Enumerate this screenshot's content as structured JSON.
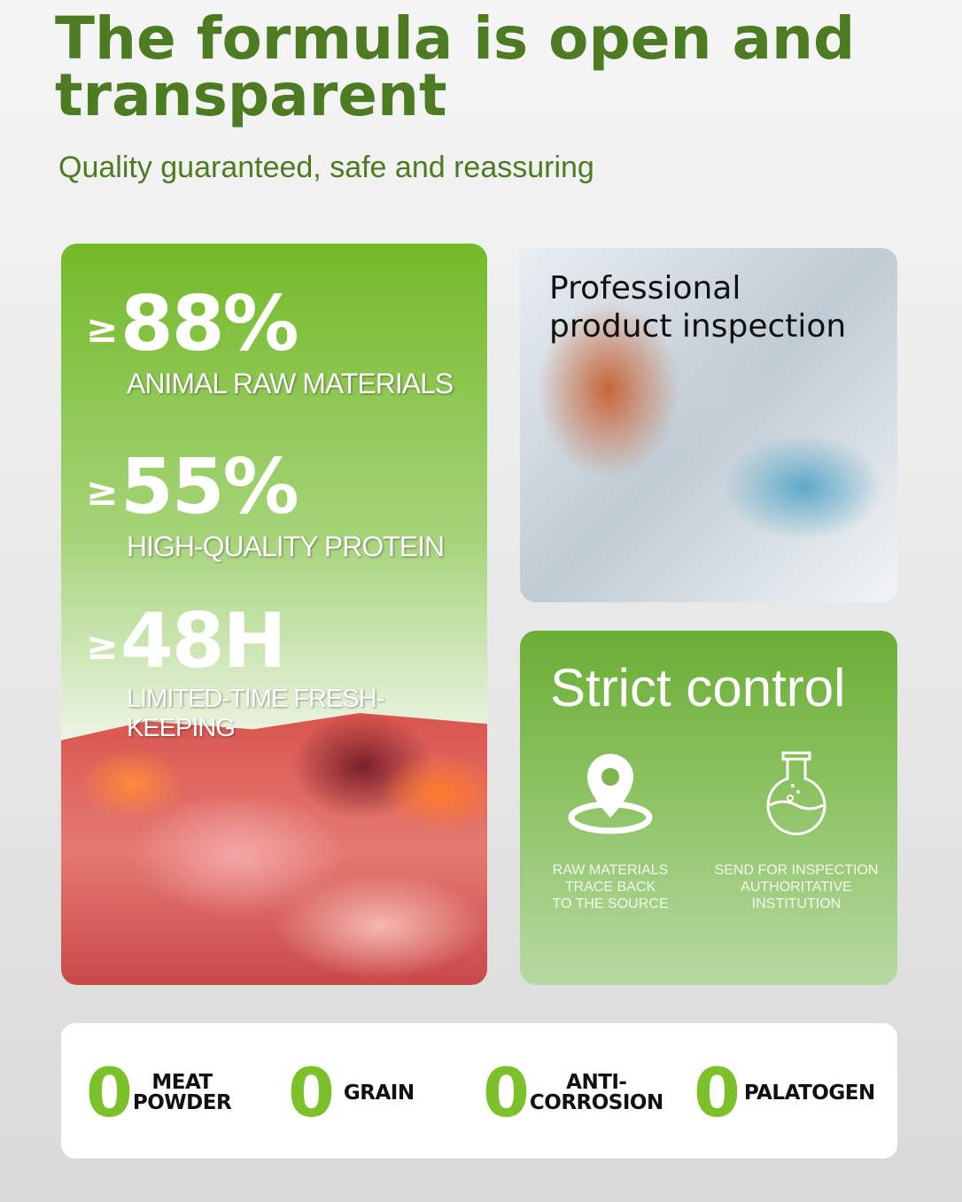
{
  "header": {
    "title_line1": "The formula is open and",
    "title_line2": "transparent",
    "subtitle": "Quality guaranteed, safe and reassuring"
  },
  "stats": [
    {
      "symbol": "≥",
      "value": "88%",
      "label": "ANIMAL RAW MATERIALS"
    },
    {
      "symbol": "≥",
      "value": "55%",
      "label": "HIGH-QUALITY PROTEIN"
    },
    {
      "symbol": "≥",
      "value": "48H",
      "label": "LIMITED-TIME FRESH-KEEPING"
    }
  ],
  "inspection": {
    "line1": "Professional",
    "line2": "product inspection"
  },
  "strict": {
    "title": "Strict control",
    "features": [
      {
        "icon": "location-pin-icon",
        "lines": [
          "RAW MATERIALS",
          "TRACE BACK",
          "TO THE SOURCE"
        ]
      },
      {
        "icon": "flask-icon",
        "lines": [
          "SEND FOR INSPECTION",
          "AUTHORITATIVE",
          "INSTITUTION"
        ]
      }
    ]
  },
  "zeros": [
    {
      "digit": "0",
      "lines": [
        "MEAT",
        "POWDER"
      ]
    },
    {
      "digit": "0",
      "lines": [
        "GRAIN"
      ]
    },
    {
      "digit": "0",
      "lines": [
        "ANTI-",
        "CORROSION"
      ]
    },
    {
      "digit": "0",
      "lines": [
        "PALATOGEN"
      ]
    }
  ],
  "colors": {
    "title": "#4d7b22",
    "accent": "#7cc02a",
    "card_green": "#74b928"
  }
}
